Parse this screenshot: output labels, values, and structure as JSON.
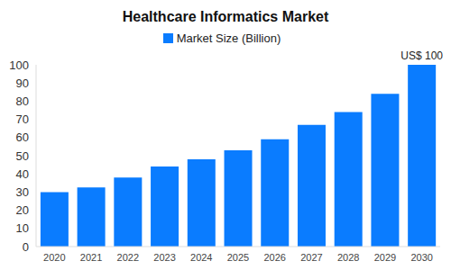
{
  "chart_data": {
    "type": "bar",
    "title": "Healthcare Informatics Market",
    "categories": [
      "2020",
      "2021",
      "2022",
      "2023",
      "2024",
      "2025",
      "2026",
      "2027",
      "2028",
      "2029",
      "2030"
    ],
    "series": [
      {
        "name": "Market Size (Billion)",
        "color": "#0a7cff",
        "values": [
          30,
          32.5,
          38,
          44,
          48,
          53,
          59,
          67,
          74,
          84,
          100
        ]
      }
    ],
    "ylim": [
      0,
      100
    ],
    "yticks": [
      0,
      10,
      20,
      30,
      40,
      50,
      60,
      70,
      80,
      90,
      100
    ],
    "grid": false,
    "annotations": [
      {
        "text": "US$ 100",
        "category": "2030"
      }
    ]
  }
}
